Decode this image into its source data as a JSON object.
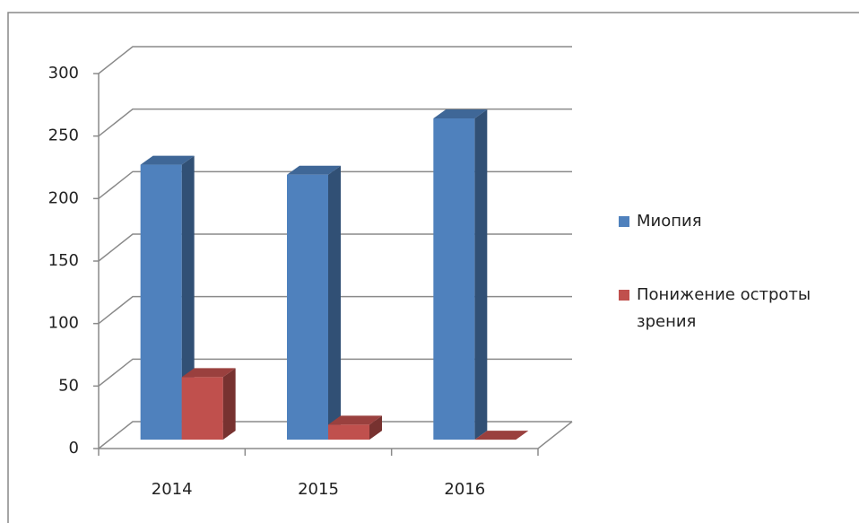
{
  "chart_data": {
    "type": "bar3d",
    "categories": [
      "2014",
      "2015",
      "2016"
    ],
    "series": [
      {
        "name": "Миопия",
        "color": "#4f81bd",
        "values": [
          220,
          212,
          257
        ]
      },
      {
        "name": "Понижение остроты зрения",
        "color": "#c0504d",
        "values": [
          50,
          12,
          0
        ]
      }
    ],
    "ylim": [
      0,
      300
    ],
    "yticks": [
      0,
      50,
      100,
      150,
      200,
      250,
      300
    ],
    "grid": true,
    "legend": "right"
  }
}
